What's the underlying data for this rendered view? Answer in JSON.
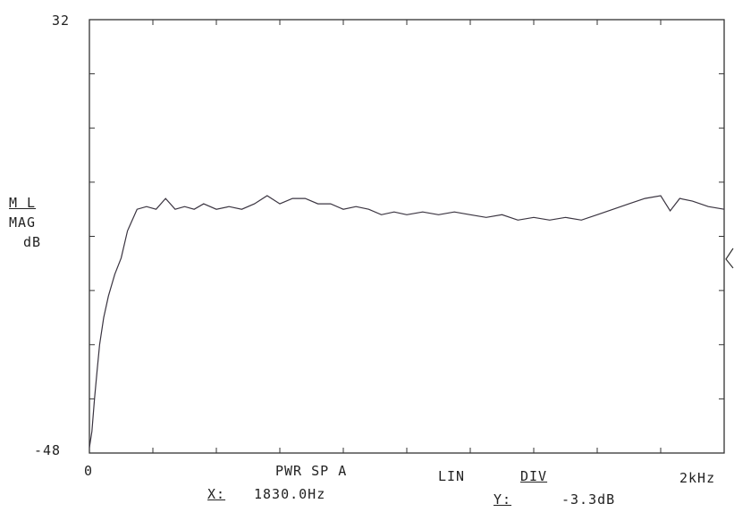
{
  "chart_data": {
    "type": "line",
    "ylim": [
      -48,
      32
    ],
    "xlim": [
      0,
      2000
    ],
    "y_tick_labels": {
      "top": "32",
      "bottom": "-48"
    },
    "x_tick_labels": {
      "left": "0",
      "right": "2kHz"
    },
    "y_axis_label": {
      "line1": "M L",
      "line2": "MAG",
      "line3": "dB"
    },
    "footer": {
      "mode": "PWR SP A",
      "scale": "LIN",
      "div": "DIV",
      "x_label": "X:",
      "x_value": "1830.0Hz",
      "y_label": "Y:",
      "y_value": "-3.3dB"
    },
    "grid": false,
    "series": [
      {
        "x": [
          0,
          8,
          16,
          24,
          32,
          45,
          60,
          80,
          100,
          120,
          150,
          180,
          210,
          240,
          270,
          300,
          330,
          360,
          400,
          440,
          480,
          520,
          560,
          600,
          640,
          680,
          720,
          760,
          800,
          840,
          880,
          920,
          960,
          1000,
          1050,
          1100,
          1150,
          1200,
          1250,
          1300,
          1350,
          1400,
          1450,
          1500,
          1550,
          1600,
          1650,
          1700,
          1750,
          1800,
          1830,
          1860,
          1900,
          1950,
          2000
        ],
        "y": [
          -47,
          -44,
          -38,
          -33,
          -28,
          -23,
          -19,
          -15,
          -12,
          -7,
          -3,
          -2.5,
          -3,
          -1,
          -3,
          -2.5,
          -3,
          -2,
          -3,
          -2.5,
          -3,
          -2,
          -0.5,
          -2,
          -1,
          -1,
          -2,
          -2,
          -3,
          -2.5,
          -3,
          -4,
          -3.5,
          -4,
          -3.5,
          -4,
          -3.5,
          -4,
          -4.5,
          -4,
          -5,
          -4.5,
          -5,
          -4.5,
          -5,
          -4,
          -3,
          -2,
          -1,
          -0.5,
          -3.3,
          -1,
          -1.5,
          -2.5,
          -3
        ]
      }
    ]
  }
}
